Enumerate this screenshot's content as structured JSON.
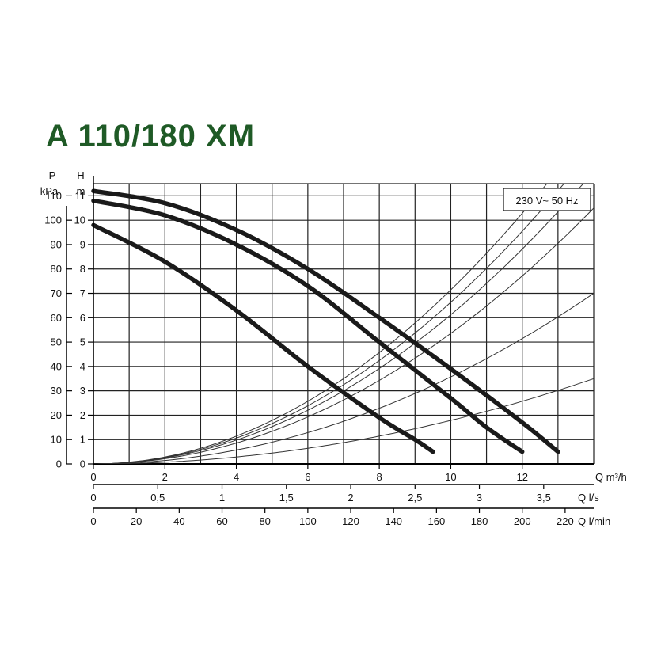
{
  "title": "A 110/180 XM",
  "colors": {
    "title": "#1f5a26",
    "grid": "#222222",
    "curve": "#1a1a1a",
    "system": "#333333"
  },
  "chart_data": {
    "type": "line",
    "title": "A 110/180 XM",
    "annotation": "230 V~ 50 Hz",
    "grid": true,
    "axes": {
      "left_outer": {
        "label_top": "P",
        "label_unit": "kPa",
        "ylim": [
          0,
          115
        ],
        "ticks": [
          "0",
          "10",
          "20",
          "30",
          "40",
          "50",
          "60",
          "70",
          "80",
          "90",
          "100",
          "110"
        ]
      },
      "left_inner": {
        "label_top": "H",
        "label_unit": "m",
        "ylim": [
          0,
          11.5
        ],
        "ticks": [
          "0",
          "1",
          "2",
          "3",
          "4",
          "5",
          "6",
          "7",
          "8",
          "9",
          "10",
          "11"
        ]
      },
      "x_m3h": {
        "label": "Q m³/h",
        "xlim": [
          0,
          14
        ],
        "ticks": [
          "0",
          "2",
          "4",
          "6",
          "8",
          "10",
          "12"
        ]
      },
      "x_ls": {
        "label": "Q l/s",
        "ticks": [
          "0",
          "0,5",
          "1",
          "1,5",
          "2",
          "2,5",
          "3",
          "3,5"
        ]
      },
      "x_lmin": {
        "label": "Q l/min",
        "ticks": [
          "0",
          "20",
          "40",
          "60",
          "80",
          "100",
          "120",
          "140",
          "160",
          "180",
          "200",
          "220"
        ]
      }
    },
    "series": [
      {
        "x": [
          0,
          2,
          4,
          6,
          8,
          9,
          9.5
        ],
        "y": [
          9.8,
          8.3,
          6.3,
          4.0,
          1.9,
          1.0,
          0.5
        ]
      },
      {
        "x": [
          0,
          2,
          4,
          6,
          8,
          10,
          11,
          12
        ],
        "y": [
          10.8,
          10.2,
          9.0,
          7.3,
          5.0,
          2.7,
          1.5,
          0.5
        ]
      },
      {
        "x": [
          0,
          2,
          4,
          6,
          8,
          10,
          12,
          13
        ],
        "y": [
          11.2,
          10.7,
          9.6,
          8.0,
          6.0,
          3.9,
          1.7,
          0.5
        ]
      }
    ],
    "system_curves": [
      {
        "x": [
          0,
          14
        ],
        "y": [
          0,
          3.5
        ]
      },
      {
        "x": [
          0,
          14
        ],
        "y": [
          0,
          7.0
        ]
      },
      {
        "x": [
          0,
          14
        ],
        "y": [
          0,
          10.5
        ]
      },
      {
        "x": [
          0,
          14
        ],
        "y": [
          0,
          12.0
        ]
      },
      {
        "x": [
          0,
          14
        ],
        "y": [
          0,
          13.0
        ]
      },
      {
        "x": [
          0,
          14
        ],
        "y": [
          0,
          14.0
        ]
      }
    ]
  }
}
